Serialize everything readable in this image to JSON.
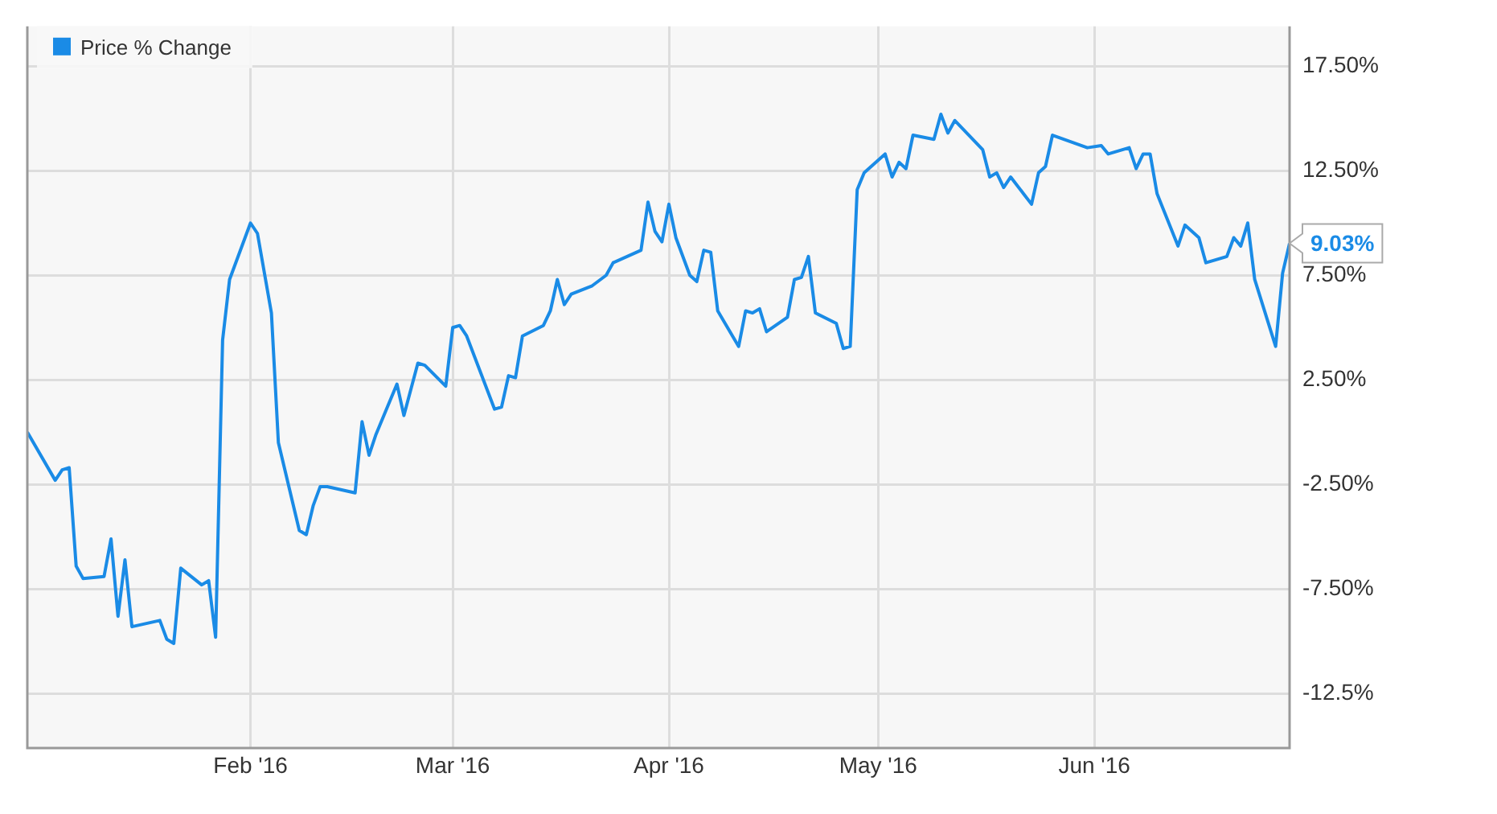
{
  "chart_data": {
    "type": "line",
    "x": [
      "2015-12-31",
      "2016-01-04",
      "2016-01-05",
      "2016-01-06",
      "2016-01-07",
      "2016-01-08",
      "2016-01-11",
      "2016-01-12",
      "2016-01-13",
      "2016-01-14",
      "2016-01-15",
      "2016-01-19",
      "2016-01-20",
      "2016-01-21",
      "2016-01-22",
      "2016-01-25",
      "2016-01-26",
      "2016-01-27",
      "2016-01-28",
      "2016-01-29",
      "2016-02-01",
      "2016-02-02",
      "2016-02-04",
      "2016-02-05",
      "2016-02-08",
      "2016-02-09",
      "2016-02-10",
      "2016-02-11",
      "2016-02-12",
      "2016-02-16",
      "2016-02-17",
      "2016-02-18",
      "2016-02-19",
      "2016-02-22",
      "2016-02-23",
      "2016-02-25",
      "2016-02-26",
      "2016-02-29",
      "2016-03-01",
      "2016-03-02",
      "2016-03-03",
      "2016-03-07",
      "2016-03-08",
      "2016-03-09",
      "2016-03-10",
      "2016-03-11",
      "2016-03-14",
      "2016-03-15",
      "2016-03-16",
      "2016-03-17",
      "2016-03-18",
      "2016-03-21",
      "2016-03-23",
      "2016-03-24",
      "2016-03-28",
      "2016-03-29",
      "2016-03-30",
      "2016-03-31",
      "2016-04-01",
      "2016-04-02",
      "2016-04-04",
      "2016-04-05",
      "2016-04-06",
      "2016-04-07",
      "2016-04-08",
      "2016-04-11",
      "2016-04-12",
      "2016-04-13",
      "2016-04-14",
      "2016-04-15",
      "2016-04-18",
      "2016-04-19",
      "2016-04-20",
      "2016-04-21",
      "2016-04-22",
      "2016-04-25",
      "2016-04-26",
      "2016-04-27",
      "2016-04-28",
      "2016-04-29",
      "2016-05-02",
      "2016-05-03",
      "2016-05-04",
      "2016-05-05",
      "2016-05-06",
      "2016-05-09",
      "2016-05-10",
      "2016-05-11",
      "2016-05-12",
      "2016-05-16",
      "2016-05-17",
      "2016-05-18",
      "2016-05-19",
      "2016-05-20",
      "2016-05-23",
      "2016-05-24",
      "2016-05-25",
      "2016-05-26",
      "2016-05-31",
      "2016-06-02",
      "2016-06-03",
      "2016-06-06",
      "2016-06-07",
      "2016-06-08",
      "2016-06-09",
      "2016-06-10",
      "2016-06-13",
      "2016-06-14",
      "2016-06-16",
      "2016-06-17",
      "2016-06-20",
      "2016-06-21",
      "2016-06-22",
      "2016-06-23",
      "2016-06-24",
      "2016-06-27",
      "2016-06-28",
      "2016-06-29"
    ],
    "series": [
      {
        "name": "Price % Change",
        "color": "#1a8be6",
        "values": [
          0,
          -2.3,
          -1.8,
          -1.7,
          -6.4,
          -7.0,
          -6.9,
          -5.1,
          -8.8,
          -6.1,
          -9.3,
          -9.0,
          -9.9,
          -10.1,
          -6.5,
          -7.3,
          -7.1,
          -9.8,
          4.4,
          7.3,
          10.0,
          9.5,
          5.7,
          -0.5,
          -4.7,
          -4.9,
          -3.5,
          -2.6,
          -2.6,
          -2.9,
          0.5,
          -1.1,
          -0.1,
          2.3,
          0.8,
          3.3,
          3.2,
          2.2,
          5.0,
          5.1,
          4.6,
          1.1,
          1.2,
          2.7,
          2.6,
          4.6,
          5.1,
          5.8,
          7.3,
          6.1,
          6.6,
          7.0,
          7.5,
          8.1,
          8.7,
          11.0,
          9.6,
          9.1,
          10.9,
          9.3,
          7.5,
          7.2,
          8.7,
          8.6,
          5.8,
          4.1,
          5.8,
          5.7,
          5.9,
          4.8,
          5.5,
          7.3,
          7.4,
          8.4,
          5.7,
          5.2,
          4.0,
          4.1,
          11.6,
          12.4,
          13.3,
          12.2,
          12.9,
          12.6,
          14.2,
          14.0,
          15.2,
          14.3,
          14.9,
          13.5,
          12.2,
          12.4,
          11.7,
          12.2,
          10.9,
          12.4,
          12.7,
          14.2,
          13.6,
          13.7,
          13.3,
          13.6,
          12.6,
          13.3,
          13.3,
          11.4,
          8.9,
          9.9,
          9.3,
          8.1,
          8.4,
          9.3,
          8.9,
          10.0,
          7.3,
          4.1,
          7.6,
          9.03
        ]
      }
    ],
    "xlim": [
      "2015-12-31",
      "2016-06-29"
    ],
    "xticks": [
      {
        "value": "2016-02-01",
        "label": "Feb '16"
      },
      {
        "value": "2016-03-01",
        "label": "Mar '16"
      },
      {
        "value": "2016-04-01",
        "label": "Apr '16"
      },
      {
        "value": "2016-05-01",
        "label": "May '16"
      },
      {
        "value": "2016-06-01",
        "label": "Jun '16"
      }
    ],
    "ylim": [
      -15.1,
      19.4
    ],
    "yticks": [
      {
        "value": -12.5,
        "label": "-12.5%"
      },
      {
        "value": -7.5,
        "label": "-7.50%"
      },
      {
        "value": -2.5,
        "label": "-2.50%"
      },
      {
        "value": 2.5,
        "label": "2.50%"
      },
      {
        "value": 7.5,
        "label": "7.50%"
      },
      {
        "value": 12.5,
        "label": "12.50%"
      },
      {
        "value": 17.5,
        "label": "17.50%"
      }
    ],
    "annotations": [
      {
        "text": "9.03%",
        "x": "2016-06-29",
        "y": 9.03
      }
    ],
    "grid": true,
    "legend": "top left",
    "marker": "none",
    "line_style": "solid"
  }
}
